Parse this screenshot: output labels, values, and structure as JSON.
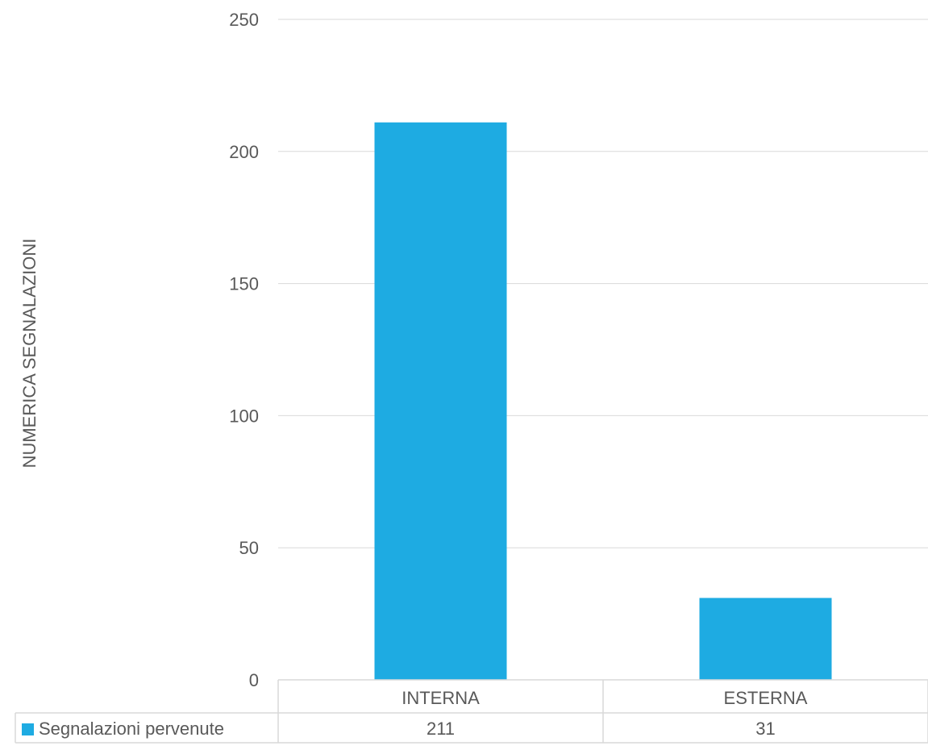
{
  "chart_data": {
    "type": "bar",
    "categories": [
      "INTERNA",
      "ESTERNA"
    ],
    "series": [
      {
        "name": "Segnalazioni pervenute",
        "values": [
          211,
          31
        ],
        "color": "#1EABE2"
      }
    ],
    "title": "",
    "xlabel": "",
    "ylabel": "NUMERICA SEGNALAZIONI",
    "ylim": [
      0,
      250
    ],
    "yticks": [
      0,
      50,
      100,
      150,
      200,
      250
    ],
    "grid": true,
    "legend": "data-table-left",
    "data_table": {
      "row_label": "Segnalazioni pervenute",
      "cells": [
        "211",
        "31"
      ]
    }
  },
  "colors": {
    "bar": "#1EABE2",
    "grid": "#D9D9D9",
    "text": "#595959"
  }
}
